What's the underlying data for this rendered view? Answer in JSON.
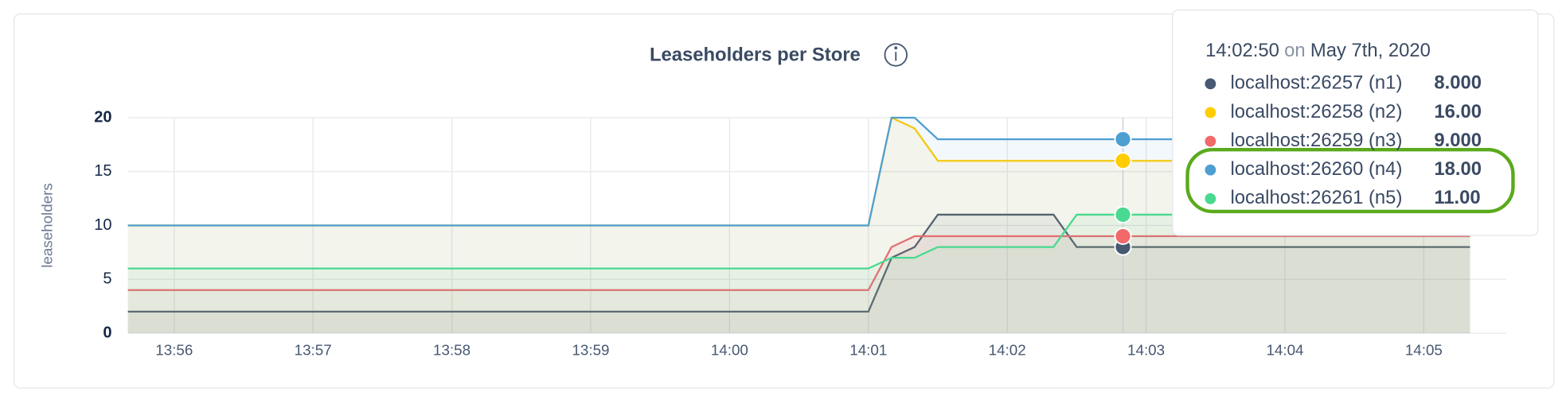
{
  "chart_data": {
    "type": "line",
    "title": "Leaseholders per Store",
    "ylabel": "leaseholders",
    "x": [
      "13:55:40",
      "14:01:00",
      "14:01:10",
      "14:01:20",
      "14:01:30",
      "14:02:20",
      "14:02:30",
      "14:05:20"
    ],
    "xlim": [
      "13:55:40",
      "14:05:20"
    ],
    "xticks": [
      "13:56",
      "13:57",
      "13:58",
      "13:59",
      "14:00",
      "14:01",
      "14:02",
      "14:03",
      "14:04",
      "14:05"
    ],
    "ylim": [
      0,
      20
    ],
    "yticks": [
      0,
      5,
      10,
      15,
      20
    ],
    "grid": true,
    "area": true,
    "series": [
      {
        "name": "localhost:26257 (n1)",
        "color": "#475872",
        "values": [
          2,
          2,
          7,
          8,
          11,
          11,
          8,
          8
        ]
      },
      {
        "name": "localhost:26258 (n2)",
        "color": "#ffcd02",
        "values": [
          10,
          10,
          20,
          19,
          16,
          16,
          16,
          16
        ]
      },
      {
        "name": "localhost:26259 (n3)",
        "color": "#f16969",
        "values": [
          4,
          4,
          8,
          9,
          9,
          9,
          9,
          9
        ]
      },
      {
        "name": "localhost:26260 (n4)",
        "color": "#4e9fd1",
        "values": [
          10,
          10,
          20,
          20,
          18,
          18,
          18,
          18
        ]
      },
      {
        "name": "localhost:26261 (n5)",
        "color": "#49d990",
        "values": [
          6,
          6,
          7,
          7,
          8,
          8,
          11,
          11
        ]
      }
    ],
    "tooltip": {
      "time": "14:02:50",
      "on": "on",
      "date": "May 7th, 2020",
      "values": [
        8,
        16,
        9,
        18,
        11
      ],
      "value_labels": [
        "8.000",
        "16.00",
        "9.000",
        "18.00",
        "11.00"
      ]
    }
  }
}
